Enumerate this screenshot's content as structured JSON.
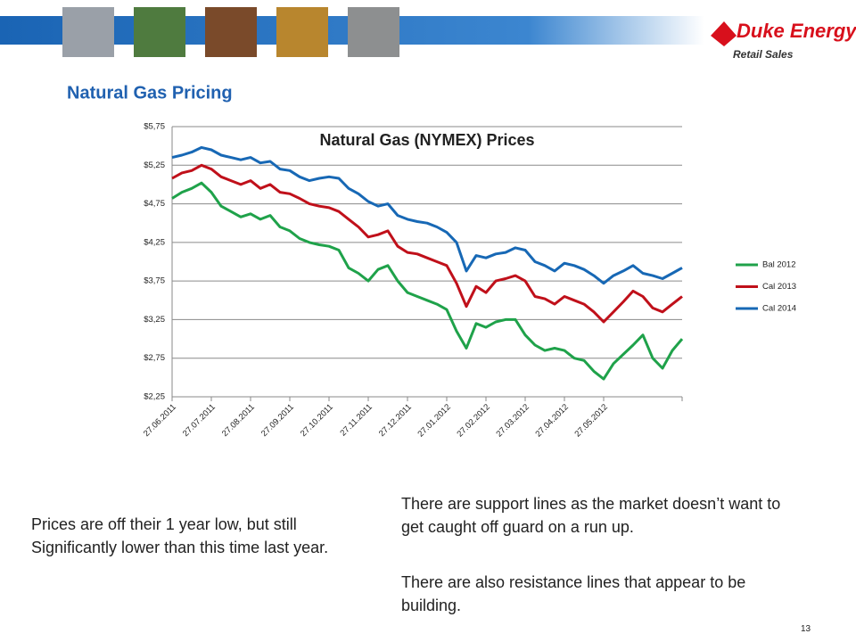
{
  "slide": {
    "logo": "Duke Energy",
    "logo_sub": "Retail Sales",
    "heading": "Natural Gas Pricing",
    "left_text": "Prices are off their 1 year low, but still Significantly lower than this time last year.",
    "right_text_1": "There are support lines as the market doesn’t want to get caught off guard on a run up.",
    "right_text_2": "There are also resistance lines that appear to be building.",
    "page_number": "13"
  },
  "chart_data": {
    "type": "line",
    "title": "Natural Gas (NYMEX) Prices",
    "categories": [
      "27.06.2011",
      null,
      null,
      null,
      "27.07.2011",
      null,
      null,
      null,
      "27.08.2011",
      null,
      null,
      null,
      "27.09.2011",
      null,
      null,
      null,
      "27.10.2011",
      null,
      null,
      null,
      "27.11.2011",
      null,
      null,
      null,
      "27.12.2011",
      null,
      null,
      null,
      "27.01.2012",
      null,
      null,
      null,
      "27.02.2012",
      null,
      null,
      null,
      "27.03.2012",
      null,
      null,
      null,
      "27.04.2012",
      null,
      null,
      null,
      "27.05.2012",
      null,
      null,
      null,
      null,
      null,
      null,
      null,
      null
    ],
    "series": [
      {
        "name": "Bal 2012",
        "color": "#1fa24a",
        "values": [
          4.82,
          4.9,
          4.95,
          5.02,
          4.9,
          4.72,
          4.65,
          4.58,
          4.62,
          4.55,
          4.6,
          4.45,
          4.4,
          4.3,
          4.25,
          4.22,
          4.2,
          4.15,
          3.92,
          3.85,
          3.75,
          3.9,
          3.95,
          3.75,
          3.6,
          3.55,
          3.5,
          3.45,
          3.38,
          3.1,
          2.88,
          3.2,
          3.15,
          3.22,
          3.25,
          3.25,
          3.05,
          2.92,
          2.85,
          2.88,
          2.85,
          2.75,
          2.72,
          2.58,
          2.48,
          2.68,
          2.8,
          2.92,
          3.05,
          2.75,
          2.62,
          2.85,
          3.0
        ]
      },
      {
        "name": "Cal 2013",
        "color": "#c0101a",
        "values": [
          5.08,
          5.15,
          5.18,
          5.25,
          5.2,
          5.1,
          5.05,
          5.0,
          5.05,
          4.95,
          5.0,
          4.9,
          4.88,
          4.82,
          4.75,
          4.72,
          4.7,
          4.65,
          4.55,
          4.45,
          4.32,
          4.35,
          4.4,
          4.2,
          4.12,
          4.1,
          4.05,
          4.0,
          3.95,
          3.72,
          3.42,
          3.68,
          3.6,
          3.75,
          3.78,
          3.82,
          3.75,
          3.55,
          3.52,
          3.45,
          3.55,
          3.5,
          3.45,
          3.35,
          3.22,
          3.35,
          3.48,
          3.62,
          3.55,
          3.4,
          3.35,
          3.45,
          3.55
        ]
      },
      {
        "name": "Cal 2014",
        "color": "#1768b5",
        "values": [
          5.35,
          5.38,
          5.42,
          5.48,
          5.45,
          5.38,
          5.35,
          5.32,
          5.35,
          5.28,
          5.3,
          5.2,
          5.18,
          5.1,
          5.05,
          5.08,
          5.1,
          5.08,
          4.95,
          4.88,
          4.78,
          4.72,
          4.75,
          4.6,
          4.55,
          4.52,
          4.5,
          4.45,
          4.38,
          4.25,
          3.88,
          4.08,
          4.05,
          4.1,
          4.12,
          4.18,
          4.15,
          4.0,
          3.95,
          3.88,
          3.98,
          3.95,
          3.9,
          3.82,
          3.72,
          3.82,
          3.88,
          3.95,
          3.85,
          3.82,
          3.78,
          3.85,
          3.92
        ]
      }
    ],
    "ylim": [
      2.25,
      5.75
    ],
    "yticks": [
      {
        "value": 2.25,
        "label": "$2,25"
      },
      {
        "value": 2.75,
        "label": "$2,75"
      },
      {
        "value": 3.25,
        "label": "$3,25"
      },
      {
        "value": 3.75,
        "label": "$3,75"
      },
      {
        "value": 4.25,
        "label": "$4,25"
      },
      {
        "value": 4.75,
        "label": "$4,75"
      },
      {
        "value": 5.25,
        "label": "$5,25"
      },
      {
        "value": 5.75,
        "label": "$5,75"
      }
    ],
    "grid": true,
    "legend": "right"
  }
}
